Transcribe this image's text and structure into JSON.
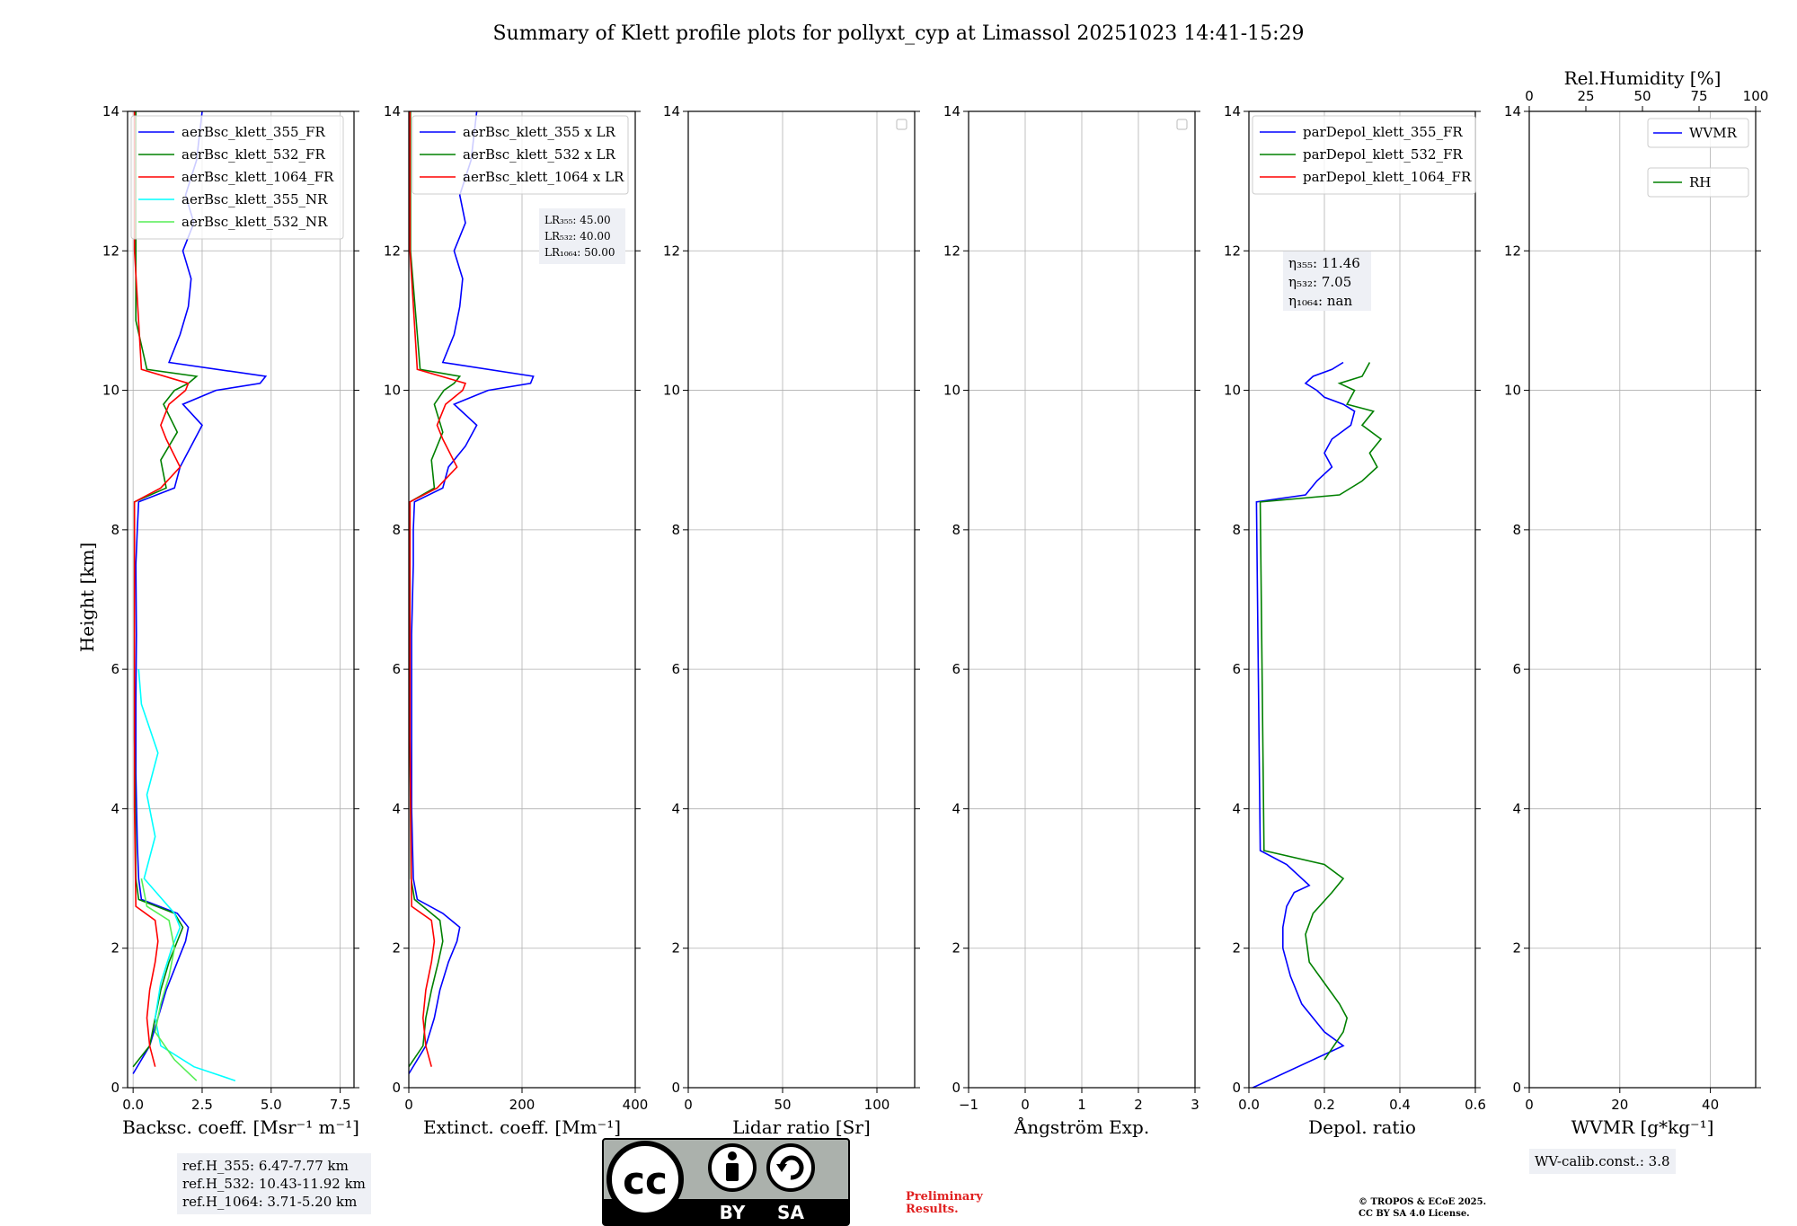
{
  "chart_data": {
    "type": "line",
    "title": "Summary of Klett profile plots for pollyxt_cyp at Limassol 20251023 14:41-15:29",
    "ylabel": "Height [km]",
    "ylim": [
      0,
      14
    ],
    "yticks": [
      "0",
      "2",
      "4",
      "6",
      "8",
      "10",
      "12",
      "14"
    ],
    "grid": true,
    "colors": {
      "c355": "#0000ff",
      "c532": "#008000",
      "c1064": "#ff0000",
      "c355nr": "#00ffff",
      "c532nr": "#55ee55"
    },
    "panels": [
      {
        "xlabel": "Backsc. coeff. [Msr⁻¹ m⁻¹]",
        "xlim": [
          -0.2,
          8.0
        ],
        "xticks": [
          0,
          2.5,
          5.0,
          7.5
        ],
        "xtick_labels": [
          "0.0",
          "2.5",
          "5.0",
          "7.5"
        ],
        "legend": [
          "aerBsc_klett_355_FR",
          "aerBsc_klett_532_FR",
          "aerBsc_klett_1064_FR",
          "aerBsc_klett_355_NR",
          "aerBsc_klett_532_NR"
        ],
        "series": [
          {
            "name": "aerBsc_klett_355_FR",
            "color": "#0000ff",
            "x": [
              0.0,
              0.6,
              0.9,
              1.2,
              1.6,
              1.9,
              2.0,
              1.6,
              0.3,
              0.2,
              0.15,
              0.1,
              0.1,
              0.12,
              0.1,
              0.15,
              0.2,
              1.5,
              1.7,
              2.1,
              2.5,
              1.8,
              3.0,
              4.6,
              4.8,
              1.3,
              1.7,
              2.0,
              2.1,
              1.8,
              2.2,
              1.9,
              2.3,
              2.5
            ],
            "y": [
              0.2,
              0.6,
              1.0,
              1.4,
              1.8,
              2.1,
              2.3,
              2.5,
              2.7,
              3.0,
              3.5,
              4.5,
              5.5,
              6.5,
              7.5,
              8.0,
              8.4,
              8.6,
              8.9,
              9.2,
              9.5,
              9.8,
              10.0,
              10.1,
              10.2,
              10.4,
              10.8,
              11.2,
              11.6,
              12.0,
              12.4,
              12.8,
              13.3,
              14.0
            ]
          },
          {
            "name": "aerBsc_klett_532_FR",
            "color": "#008000",
            "x": [
              0.0,
              0.6,
              0.8,
              1.0,
              1.3,
              1.6,
              1.8,
              1.5,
              0.2,
              0.1,
              0.05,
              0.05,
              0.05,
              1.2,
              1.0,
              1.6,
              1.1,
              1.5,
              2.0,
              2.3,
              0.5,
              0.1,
              0.1,
              0.1
            ],
            "y": [
              0.3,
              0.6,
              1.0,
              1.4,
              1.8,
              2.1,
              2.3,
              2.5,
              2.7,
              3.0,
              5.0,
              7.0,
              8.4,
              8.6,
              9.0,
              9.4,
              9.8,
              10.0,
              10.1,
              10.2,
              10.3,
              11.0,
              12.5,
              14.0
            ]
          },
          {
            "name": "aerBsc_klett_1064_FR",
            "color": "#ff0000",
            "x": [
              0.8,
              0.6,
              0.5,
              0.6,
              0.8,
              0.9,
              0.8,
              0.1,
              0.05,
              0.05,
              0.05,
              1.0,
              1.7,
              1.2,
              1.0,
              1.3,
              1.9,
              2.0,
              0.3,
              0.05,
              0.05
            ],
            "y": [
              0.3,
              0.6,
              1.0,
              1.4,
              1.8,
              2.1,
              2.4,
              2.6,
              4.0,
              6.0,
              8.4,
              8.6,
              8.9,
              9.3,
              9.5,
              9.8,
              10.0,
              10.1,
              10.3,
              12.0,
              14.0
            ]
          },
          {
            "name": "aerBsc_klett_355_NR",
            "color": "#00ffff",
            "x": [
              3.7,
              2.2,
              1.0,
              0.8,
              1.0,
              1.4,
              1.7,
              1.5,
              0.4,
              0.8,
              0.5,
              0.9,
              0.3,
              0.2
            ],
            "y": [
              0.1,
              0.3,
              0.6,
              1.0,
              1.5,
              2.0,
              2.3,
              2.5,
              3.0,
              3.6,
              4.2,
              4.8,
              5.5,
              6.0
            ]
          },
          {
            "name": "aerBsc_klett_532_NR",
            "color": "#55ee55",
            "x": [
              2.3,
              1.5,
              0.8,
              1.0,
              1.3,
              1.5,
              1.3,
              0.5,
              0.3
            ],
            "y": [
              0.1,
              0.4,
              0.8,
              1.2,
              1.6,
              2.0,
              2.4,
              2.6,
              3.0
            ]
          }
        ]
      },
      {
        "xlabel": "Extinct. coeff. [Mm⁻¹]",
        "xlim": [
          0,
          400
        ],
        "xticks": [
          0,
          200,
          400
        ],
        "xtick_labels": [
          "0",
          "200",
          "400"
        ],
        "legend": [
          "aerBsc_klett_355 x LR",
          "aerBsc_klett_532 x LR",
          "aerBsc_klett_1064 x LR"
        ],
        "series": [
          {
            "name": "aerBsc_klett_355 x LR",
            "color": "#0000ff",
            "x": [
              0,
              30,
              45,
              55,
              70,
              85,
              90,
              60,
              15,
              8,
              5,
              5,
              5,
              8,
              8,
              10,
              60,
              70,
              100,
              120,
              80,
              140,
              215,
              220,
              60,
              80,
              90,
              95,
              80,
              100,
              90,
              110,
              120
            ],
            "y": [
              0.2,
              0.6,
              1.0,
              1.4,
              1.8,
              2.1,
              2.3,
              2.5,
              2.7,
              3.0,
              4.0,
              5.5,
              6.5,
              7.5,
              8.0,
              8.4,
              8.6,
              8.9,
              9.2,
              9.5,
              9.8,
              10.0,
              10.1,
              10.2,
              10.4,
              10.8,
              11.2,
              11.6,
              12.0,
              12.4,
              12.8,
              13.3,
              14.0
            ]
          },
          {
            "name": "aerBsc_klett_532 x LR",
            "color": "#008000",
            "x": [
              0,
              25,
              30,
              40,
              52,
              60,
              55,
              10,
              4,
              2,
              2,
              45,
              40,
              60,
              45,
              62,
              80,
              90,
              20,
              3,
              3
            ],
            "y": [
              0.3,
              0.6,
              1.0,
              1.4,
              1.8,
              2.1,
              2.4,
              2.7,
              3.0,
              5.0,
              8.4,
              8.6,
              9.0,
              9.4,
              9.8,
              10.0,
              10.1,
              10.2,
              10.3,
              12.0,
              14.0
            ]
          },
          {
            "name": "aerBsc_klett_1064 x LR",
            "color": "#ff0000",
            "x": [
              40,
              30,
              25,
              30,
              40,
              45,
              40,
              5,
              2,
              2,
              50,
              85,
              60,
              50,
              65,
              95,
              100,
              15,
              2,
              2
            ],
            "y": [
              0.3,
              0.6,
              1.0,
              1.4,
              1.8,
              2.1,
              2.4,
              2.6,
              5.0,
              8.4,
              8.6,
              8.9,
              9.3,
              9.5,
              9.8,
              10.0,
              10.1,
              10.3,
              12.0,
              14.0
            ]
          }
        ]
      },
      {
        "xlabel": "Lidar ratio [Sr]",
        "xlim": [
          0,
          120
        ],
        "xticks": [
          0,
          50,
          100
        ],
        "xtick_labels": [
          "0",
          "50",
          "100"
        ],
        "legend": [],
        "series": []
      },
      {
        "xlabel": "Ångström Exp.",
        "xlim": [
          -1,
          3
        ],
        "xticks": [
          -1,
          0,
          1,
          2,
          3
        ],
        "xtick_labels": [
          "−1",
          "0",
          "1",
          "2",
          "3"
        ],
        "legend": [],
        "series": []
      },
      {
        "xlabel": "Depol. ratio",
        "xlim": [
          0,
          0.6
        ],
        "xticks": [
          0,
          0.2,
          0.4,
          0.6
        ],
        "xtick_labels": [
          "0.0",
          "0.2",
          "0.4",
          "0.6"
        ],
        "legend": [
          "parDepol_klett_355_FR",
          "parDepol_klett_532_FR",
          "parDepol_klett_1064_FR"
        ],
        "series": [
          {
            "name": "parDepol_klett_355_FR",
            "color": "#0000ff",
            "x": [
              0.01,
              0.25,
              0.2,
              0.14,
              0.11,
              0.09,
              0.09,
              0.1,
              0.12,
              0.16,
              0.1,
              0.03,
              0.02,
              0.15,
              0.18,
              0.22,
              0.2,
              0.22,
              0.27,
              0.28,
              0.25,
              0.2,
              0.18,
              0.15,
              0.17,
              0.22,
              0.25
            ],
            "y": [
              0.0,
              0.6,
              0.8,
              1.2,
              1.6,
              2.0,
              2.3,
              2.6,
              2.8,
              2.9,
              3.2,
              3.4,
              8.4,
              8.5,
              8.7,
              8.9,
              9.1,
              9.3,
              9.5,
              9.7,
              9.8,
              9.9,
              10.0,
              10.1,
              10.2,
              10.3,
              10.4
            ]
          },
          {
            "name": "parDepol_klett_532_FR",
            "color": "#008000",
            "x": [
              0.2,
              0.25,
              0.26,
              0.24,
              0.2,
              0.16,
              0.15,
              0.17,
              0.22,
              0.25,
              0.2,
              0.04,
              0.03,
              0.24,
              0.3,
              0.34,
              0.32,
              0.35,
              0.3,
              0.33,
              0.26,
              0.28,
              0.24,
              0.3,
              0.32
            ],
            "y": [
              0.4,
              0.8,
              1.0,
              1.2,
              1.5,
              1.8,
              2.2,
              2.5,
              2.8,
              3.0,
              3.2,
              3.4,
              8.4,
              8.5,
              8.7,
              8.9,
              9.1,
              9.3,
              9.5,
              9.7,
              9.8,
              10.0,
              10.1,
              10.2,
              10.4
            ]
          }
        ]
      },
      {
        "xlabel": "WVMR [g*kg⁻¹]",
        "xlim": [
          0,
          50
        ],
        "xticks": [
          0,
          20,
          40
        ],
        "xtick_labels": [
          "0",
          "20",
          "40"
        ],
        "top_xlabel": "Rel.Humidity [%]",
        "top_xlim": [
          0,
          100
        ],
        "top_xticks": [
          0,
          25,
          50,
          75,
          100
        ],
        "top_xtick_labels": [
          "0",
          "25",
          "50",
          "75",
          "100"
        ],
        "legend": [
          "WVMR",
          "RH"
        ],
        "series": []
      }
    ],
    "annotations": {
      "lr_box": [
        "LR₃₅₅: 45.00",
        "LR₅₃₂: 40.00",
        "LR₁₀₆₄: 50.00"
      ],
      "eta_box": [
        "η₃₅₅: 11.46",
        "η₅₃₂: 7.05",
        "η₁₀₆₄: nan"
      ],
      "ref_box": [
        "ref.H_355: 6.47-7.77 km",
        "ref.H_532: 10.43-11.92 km",
        "ref.H_1064: 3.71-5.20 km"
      ],
      "wv_box": "WV-calib.const.: 3.8",
      "preliminary": [
        "Preliminary",
        "Results."
      ],
      "copyright": [
        "© TROPOS & ECoE 2025.",
        "CC BY SA 4.0 License."
      ],
      "cc_badge": {
        "cc": "cc",
        "by": "BY",
        "sa": "SA"
      }
    }
  }
}
